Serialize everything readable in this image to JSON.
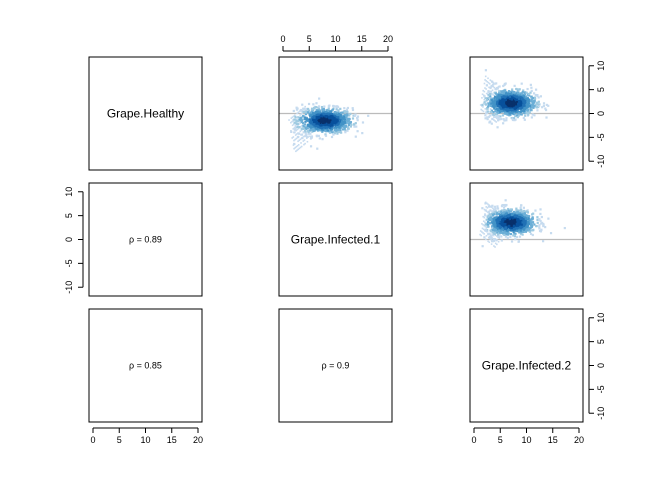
{
  "chart_data": {
    "type": "scatter",
    "layout": "pairs-matrix-3x3",
    "samples": [
      "Grape.Healthy",
      "Grape.Infected.1",
      "Grape.Infected.2"
    ],
    "x_ticks": [
      "0",
      "5",
      "10",
      "15",
      "20"
    ],
    "y_ticks": [
      "-10",
      "-5",
      "0",
      "5",
      "10"
    ],
    "xlim": [
      0,
      20
    ],
    "ylim": [
      -11,
      11
    ],
    "correlations": [
      {
        "row": 2,
        "col": 1,
        "text": "ρ = 0.89",
        "value": 0.89
      },
      {
        "row": 3,
        "col": 1,
        "text": "ρ = 0.85",
        "value": 0.85
      },
      {
        "row": 3,
        "col": 2,
        "text": "ρ = 0.9",
        "value": 0.9
      }
    ],
    "scatter_panels": [
      {
        "row": 1,
        "col": 2,
        "center_x": 8,
        "center_y": -1.5,
        "spread_x": 2.6,
        "spread_y": 1.3
      },
      {
        "row": 1,
        "col": 3,
        "center_x": 7,
        "center_y": 2.2,
        "spread_x": 2.4,
        "spread_y": 1.4
      },
      {
        "row": 2,
        "col": 3,
        "center_x": 7,
        "center_y": 3.6,
        "spread_x": 2.4,
        "spread_y": 1.3
      }
    ],
    "reference_line_y": 0,
    "colors": {
      "dense": "#08306b",
      "mid": "#4292c6",
      "sparse": "#c6dbef",
      "refline": "#bbbbbb"
    }
  }
}
